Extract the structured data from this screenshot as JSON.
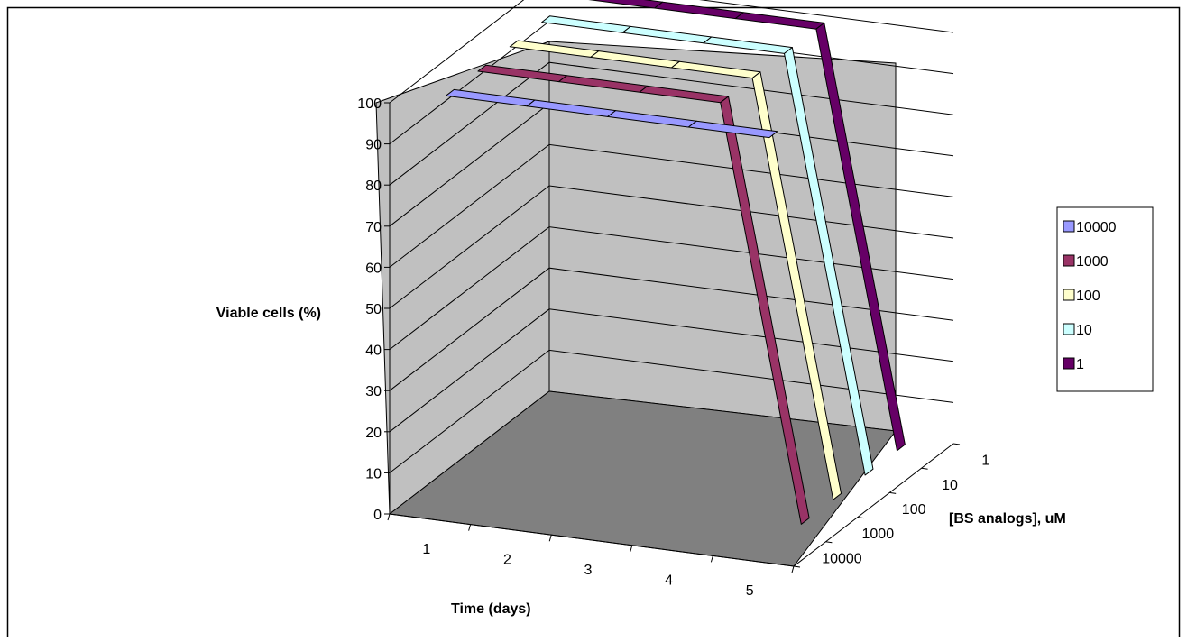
{
  "chart_data": {
    "type": "line",
    "subtype": "3d-line",
    "ylabel": "Viable cells (%)",
    "xlabel": "Time (days)",
    "zlabel": "[BS analogs], uM",
    "x": [
      "1",
      "2",
      "3",
      "4",
      "5"
    ],
    "z_ticks": [
      "1",
      "10",
      "100",
      "1000",
      "10000"
    ],
    "y_ticks": [
      "0",
      "10",
      "20",
      "30",
      "40",
      "50",
      "60",
      "70",
      "80",
      "90",
      "100"
    ],
    "ylim": [
      0,
      100
    ],
    "grid": true,
    "legend_position": "right",
    "series": [
      {
        "name": "10000",
        "color": "#9999ff",
        "values": [
          100,
          100,
          100,
          100,
          100
        ]
      },
      {
        "name": "1000",
        "color": "#993366",
        "values": [
          100,
          100,
          100,
          100,
          0
        ]
      },
      {
        "name": "100",
        "color": "#ffffcc",
        "values": [
          100,
          100,
          100,
          100,
          0
        ]
      },
      {
        "name": "10",
        "color": "#ccffff",
        "values": [
          100,
          100,
          100,
          100,
          0
        ]
      },
      {
        "name": "1",
        "color": "#660066",
        "values": [
          100,
          100,
          100,
          100,
          0
        ]
      }
    ],
    "colors": {
      "walls": "#c0c0c0",
      "floor": "#808080",
      "gridline": "#000000"
    }
  }
}
